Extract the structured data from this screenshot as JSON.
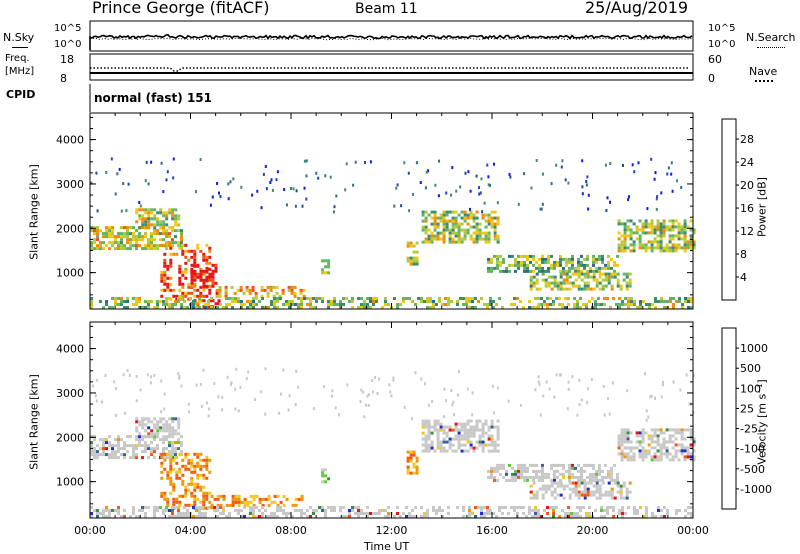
{
  "header": {
    "station": "Prince George (fitACF)",
    "beam": "Beam 11",
    "date": "25/Aug/2019"
  },
  "top_panels": {
    "nsky_label": "N.Sky",
    "nsky_ticks": [
      "10^5",
      "10^0"
    ],
    "nsearch_label": "N.Search",
    "nsearch_ticks": [
      "10^5",
      "10^0"
    ],
    "freq_label": "Freq.",
    "freq_unit": "[MHz]",
    "freq_ticks": [
      "18",
      "8"
    ],
    "nave_label": "Nave",
    "nave_ticks": [
      "60",
      "0"
    ],
    "cpid_label": "CPID",
    "cpid_value": "normal (fast) 151"
  },
  "chart_data": [
    {
      "type": "heatmap",
      "panel": "power",
      "xlabel": "",
      "ylabel": "Slant Range [km]",
      "x_ticks": [
        "00:00",
        "04:00",
        "08:00",
        "12:00",
        "16:00",
        "20:00",
        "00:00"
      ],
      "x_range_hours": [
        0,
        24
      ],
      "y_ticks": [
        1000,
        2000,
        3000,
        4000
      ],
      "ylim": [
        180,
        4600
      ],
      "colorbar": {
        "label": "Power [dB]",
        "tick_labels": [
          "4",
          "8",
          "12",
          "16",
          "20",
          "24",
          "28"
        ],
        "colors": [
          "#0a1ee6",
          "#1e46b4",
          "#2d6e8c",
          "#3c8c6e",
          "#64b464",
          "#b4c83c",
          "#f0c814",
          "#f08c0a",
          "#f0501e",
          "#e61414"
        ]
      },
      "regions": [
        {
          "t0": 0.0,
          "t1": 3.6,
          "r0": 1550,
          "r1": 2050,
          "level": 0.6
        },
        {
          "t0": 1.8,
          "t1": 3.5,
          "r0": 2000,
          "r1": 2450,
          "level": 0.55
        },
        {
          "t0": 2.8,
          "t1": 4.8,
          "r0": 400,
          "r1": 1650,
          "level": 0.85
        },
        {
          "t0": 4.0,
          "t1": 5.0,
          "r0": 700,
          "r1": 1200,
          "level": 1.0
        },
        {
          "t0": 4.0,
          "t1": 5.3,
          "r0": 200,
          "r1": 400,
          "level": 0.95
        },
        {
          "t0": 5.0,
          "t1": 8.5,
          "r0": 480,
          "r1": 700,
          "level": 0.7
        },
        {
          "t0": 9.2,
          "t1": 9.5,
          "r0": 1000,
          "r1": 1300,
          "level": 0.6
        },
        {
          "t0": 12.6,
          "t1": 13.0,
          "r0": 1200,
          "r1": 1700,
          "level": 0.5
        },
        {
          "t0": 13.2,
          "t1": 16.2,
          "r0": 1700,
          "r1": 2400,
          "level": 0.55
        },
        {
          "t0": 15.8,
          "t1": 21.0,
          "r0": 1050,
          "r1": 1400,
          "level": 0.45
        },
        {
          "t0": 17.5,
          "t1": 21.5,
          "r0": 600,
          "r1": 1000,
          "level": 0.5
        },
        {
          "t0": 21.0,
          "t1": 24.0,
          "r0": 1500,
          "r1": 2200,
          "level": 0.55
        },
        {
          "t0": 0.0,
          "t1": 24.0,
          "r0": 180,
          "r1": 450,
          "level": 0.5
        }
      ]
    },
    {
      "type": "heatmap",
      "panel": "velocity",
      "xlabel": "Time UT",
      "ylabel": "Slant Range [km]",
      "x_ticks": [
        "00:00",
        "04:00",
        "08:00",
        "12:00",
        "16:00",
        "20:00",
        "00:00"
      ],
      "x_range_hours": [
        0,
        24
      ],
      "y_ticks": [
        1000,
        2000,
        3000,
        4000
      ],
      "ylim": [
        180,
        4600
      ],
      "colorbar": {
        "label": "Velocity [m s⁻¹]",
        "tick_labels": [
          "1000",
          "500",
          "100",
          "25",
          "-25",
          "-100",
          "-500",
          "-1000"
        ],
        "colors": [
          "#1e32c8",
          "#3264a0",
          "#3c8c3c",
          "#64c83c",
          "#c8c8c8",
          "#f0c81e",
          "#f0960a",
          "#f05a14",
          "#e61414"
        ]
      },
      "regions": [
        {
          "t0": 0.0,
          "t1": 3.6,
          "r0": 1550,
          "r1": 2050,
          "level": 0.5
        },
        {
          "t0": 1.8,
          "t1": 3.5,
          "r0": 2000,
          "r1": 2450,
          "level": 0.5
        },
        {
          "t0": 2.8,
          "t1": 4.8,
          "r0": 400,
          "r1": 1650,
          "level": 0.75
        },
        {
          "t0": 4.8,
          "t1": 8.5,
          "r0": 480,
          "r1": 700,
          "level": 0.75
        },
        {
          "t0": 9.2,
          "t1": 9.5,
          "r0": 1000,
          "r1": 1300,
          "level": 0.25
        },
        {
          "t0": 12.6,
          "t1": 13.0,
          "r0": 1200,
          "r1": 1700,
          "level": 0.7
        },
        {
          "t0": 13.2,
          "t1": 16.2,
          "r0": 1700,
          "r1": 2400,
          "level": 0.5
        },
        {
          "t0": 15.8,
          "t1": 21.0,
          "r0": 1050,
          "r1": 1400,
          "level": 0.5
        },
        {
          "t0": 17.5,
          "t1": 21.5,
          "r0": 600,
          "r1": 1000,
          "level": 0.5
        },
        {
          "t0": 21.0,
          "t1": 24.0,
          "r0": 1500,
          "r1": 2200,
          "level": 0.5
        },
        {
          "t0": 0.0,
          "t1": 24.0,
          "r0": 180,
          "r1": 450,
          "level": 0.3
        }
      ]
    }
  ]
}
